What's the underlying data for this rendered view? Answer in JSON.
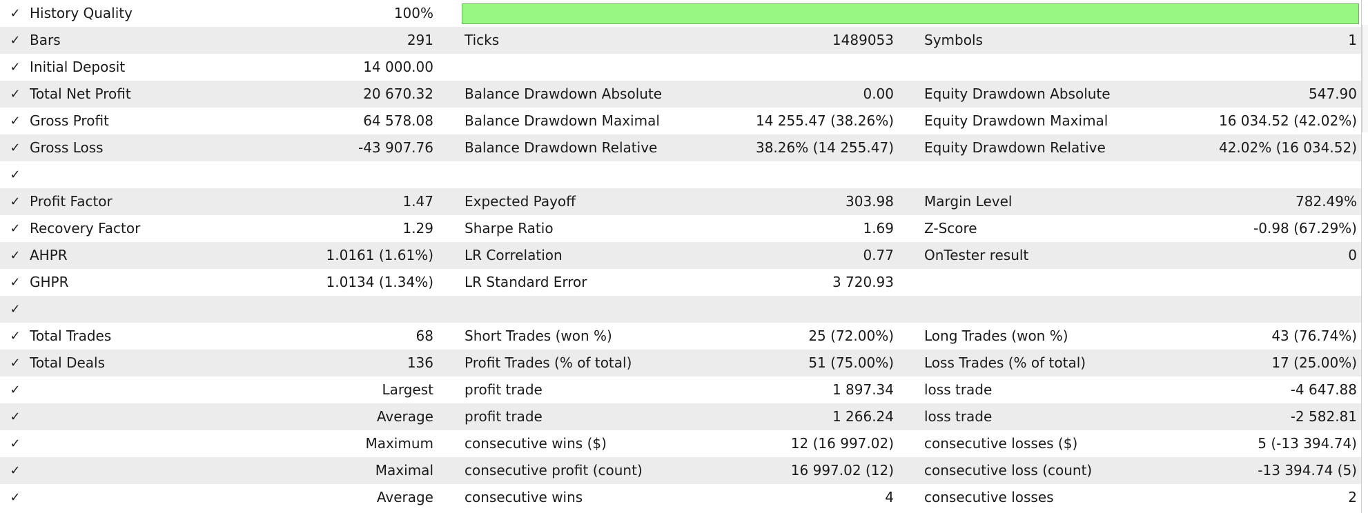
{
  "rows": [
    {
      "c1_label": "History Quality",
      "c1_value": "100%",
      "history_quality_percent": 100,
      "bar_color": "#98f783"
    },
    {
      "c1_label": "Bars",
      "c1_value": "291",
      "c2_label": "Ticks",
      "c2_value": "1489053",
      "c3_label": "Symbols",
      "c3_value": "1"
    },
    {
      "c1_label": "Initial Deposit",
      "c1_value": "14 000.00"
    },
    {
      "c1_label": "Total Net Profit",
      "c1_value": "20 670.32",
      "c2_label": "Balance Drawdown Absolute",
      "c2_value": "0.00",
      "c3_label": "Equity Drawdown Absolute",
      "c3_value": "547.90"
    },
    {
      "c1_label": "Gross Profit",
      "c1_value": "64 578.08",
      "c2_label": "Balance Drawdown Maximal",
      "c2_value": "14 255.47 (38.26%)",
      "c3_label": "Equity Drawdown Maximal",
      "c3_value": "16 034.52 (42.02%)"
    },
    {
      "c1_label": "Gross Loss",
      "c1_value": "-43 907.76",
      "c2_label": "Balance Drawdown Relative",
      "c2_value": "38.26% (14 255.47)",
      "c3_label": "Equity Drawdown Relative",
      "c3_value": "42.02% (16 034.52)"
    },
    {},
    {
      "c1_label": "Profit Factor",
      "c1_value": "1.47",
      "c2_label": "Expected Payoff",
      "c2_value": "303.98",
      "c3_label": "Margin Level",
      "c3_value": "782.49%"
    },
    {
      "c1_label": "Recovery Factor",
      "c1_value": "1.29",
      "c2_label": "Sharpe Ratio",
      "c2_value": "1.69",
      "c3_label": "Z-Score",
      "c3_value": "-0.98 (67.29%)"
    },
    {
      "c1_label": "AHPR",
      "c1_value": "1.0161 (1.61%)",
      "c2_label": "LR Correlation",
      "c2_value": "0.77",
      "c3_label": "OnTester result",
      "c3_value": "0"
    },
    {
      "c1_label": "GHPR",
      "c1_value": "1.0134 (1.34%)",
      "c2_label": "LR Standard Error",
      "c2_value": "3 720.93"
    },
    {},
    {
      "c1_label": "Total Trades",
      "c1_value": "68",
      "c2_label": "Short Trades (won %)",
      "c2_value": "25 (72.00%)",
      "c3_label": "Long Trades (won %)",
      "c3_value": "43 (76.74%)"
    },
    {
      "c1_label": "Total Deals",
      "c1_value": "136",
      "c2_label": "Profit Trades (% of total)",
      "c2_value": "51 (75.00%)",
      "c3_label": "Loss Trades (% of total)",
      "c3_value": "17 (25.00%)"
    },
    {
      "c1_right_label": "Largest",
      "c2_label": "profit trade",
      "c2_value": "1 897.34",
      "c3_label": "loss trade",
      "c3_value": "-4 647.88"
    },
    {
      "c1_right_label": "Average",
      "c2_label": "profit trade",
      "c2_value": "1 266.24",
      "c3_label": "loss trade",
      "c3_value": "-2 582.81"
    },
    {
      "c1_right_label": "Maximum",
      "c2_label": "consecutive wins ($)",
      "c2_value": "12 (16 997.02)",
      "c3_label": "consecutive losses ($)",
      "c3_value": "5 (-13 394.74)"
    },
    {
      "c1_right_label": "Maximal",
      "c2_label": "consecutive profit (count)",
      "c2_value": "16 997.02 (12)",
      "c3_label": "consecutive loss (count)",
      "c3_value": "-13 394.74 (5)"
    },
    {
      "c1_right_label": "Average",
      "c2_label": "consecutive wins",
      "c2_value": "4",
      "c3_label": "consecutive losses",
      "c3_value": "2"
    }
  ],
  "check_glyph": "✓"
}
